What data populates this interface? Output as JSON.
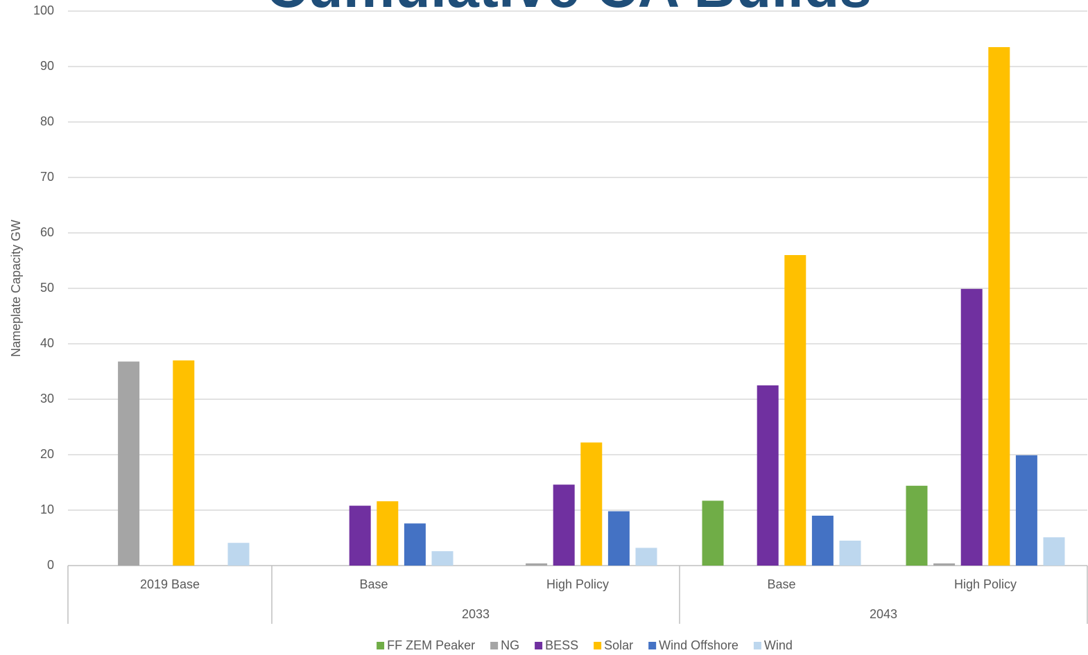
{
  "chart_data": {
    "type": "bar",
    "title": "Cumulative CA Builds",
    "y_label": "Nameplate Capacity GW",
    "categories": [
      "2019 Base",
      "Base",
      "High Policy",
      "Base",
      "High Policy"
    ],
    "category_groups": [
      null,
      "2033",
      "2033",
      "2043",
      "2043"
    ],
    "series": [
      {
        "name": "FF ZEM Peaker",
        "color": "#70ad47",
        "values": [
          0,
          0,
          0,
          11.7,
          14.4
        ]
      },
      {
        "name": "NG",
        "color": "#a5a5a5",
        "values": [
          36.8,
          0,
          0.4,
          0,
          0.4
        ]
      },
      {
        "name": "BESS",
        "color": "#7030a0",
        "values": [
          0,
          10.8,
          14.6,
          32.5,
          49.9
        ]
      },
      {
        "name": "Solar",
        "color": "#ffc000",
        "values": [
          37.0,
          11.6,
          22.2,
          56.0,
          93.5
        ]
      },
      {
        "name": "Wind Offshore",
        "color": "#4472c4",
        "values": [
          0,
          7.6,
          9.8,
          9.0,
          19.9
        ]
      },
      {
        "name": "Wind",
        "color": "#bdd7ee",
        "values": [
          4.1,
          2.6,
          3.2,
          4.5,
          5.1
        ]
      }
    ],
    "ylim": [
      0,
      100
    ],
    "yticks": [
      0,
      10,
      20,
      30,
      40,
      50,
      60,
      70,
      80,
      90,
      100
    ],
    "grid": true,
    "legend": "bottom"
  }
}
